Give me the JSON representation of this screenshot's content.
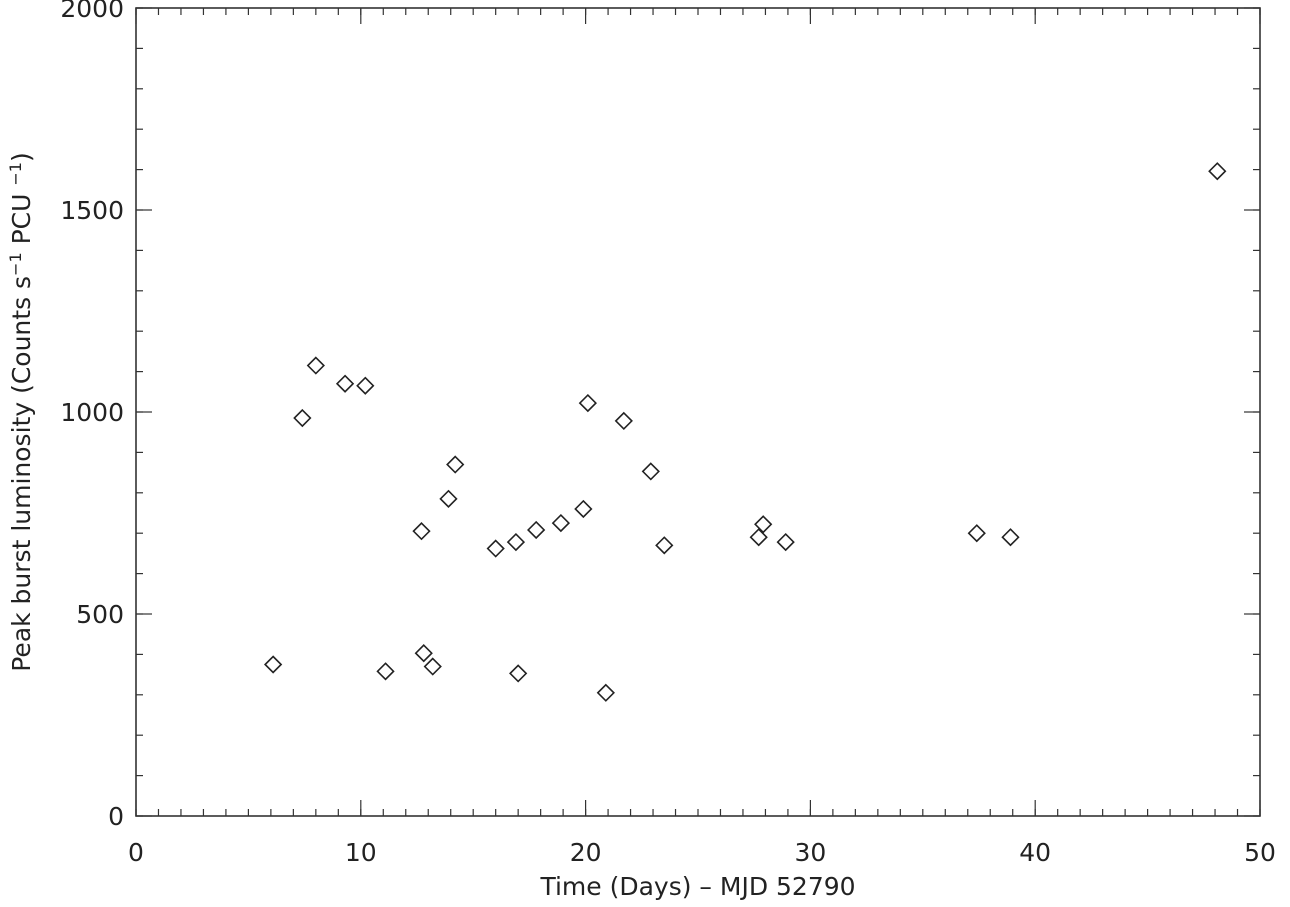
{
  "chart_data": {
    "type": "scatter",
    "title": "",
    "xlabel": "Time (Days) – MJD 52790",
    "ylabel_main": "Peak burst luminosity (Counts s",
    "ylabel_sup1": "−1",
    "ylabel_mid": " PCU ",
    "ylabel_sup2": "−1",
    "ylabel_end": ")",
    "xlim": [
      0,
      50
    ],
    "ylim": [
      0,
      2000
    ],
    "x_ticks": [
      0,
      10,
      20,
      30,
      40,
      50
    ],
    "x_tick_labels": [
      "0",
      "10",
      "20",
      "30",
      "40",
      "50"
    ],
    "y_ticks": [
      0,
      500,
      1000,
      1500,
      2000
    ],
    "y_tick_labels": [
      "0",
      "500",
      "1000",
      "1500",
      "2000"
    ],
    "x_minor_step": 1,
    "y_minor_step": 100,
    "grid": false,
    "marker": "open-diamond",
    "points": [
      {
        "x": 6.1,
        "y": 375
      },
      {
        "x": 7.4,
        "y": 985
      },
      {
        "x": 8.0,
        "y": 1115
      },
      {
        "x": 9.3,
        "y": 1070
      },
      {
        "x": 10.2,
        "y": 1065
      },
      {
        "x": 11.1,
        "y": 358
      },
      {
        "x": 12.7,
        "y": 705
      },
      {
        "x": 12.8,
        "y": 403
      },
      {
        "x": 13.2,
        "y": 370
      },
      {
        "x": 13.9,
        "y": 785
      },
      {
        "x": 14.2,
        "y": 870
      },
      {
        "x": 16.0,
        "y": 662
      },
      {
        "x": 16.9,
        "y": 678
      },
      {
        "x": 17.0,
        "y": 353
      },
      {
        "x": 17.8,
        "y": 708
      },
      {
        "x": 18.9,
        "y": 725
      },
      {
        "x": 19.9,
        "y": 760
      },
      {
        "x": 20.1,
        "y": 1022
      },
      {
        "x": 20.9,
        "y": 305
      },
      {
        "x": 21.7,
        "y": 978
      },
      {
        "x": 22.9,
        "y": 853
      },
      {
        "x": 23.5,
        "y": 670
      },
      {
        "x": 27.7,
        "y": 690
      },
      {
        "x": 27.9,
        "y": 722
      },
      {
        "x": 28.9,
        "y": 678
      },
      {
        "x": 37.4,
        "y": 700
      },
      {
        "x": 38.9,
        "y": 690
      },
      {
        "x": 48.1,
        "y": 1596
      }
    ]
  }
}
